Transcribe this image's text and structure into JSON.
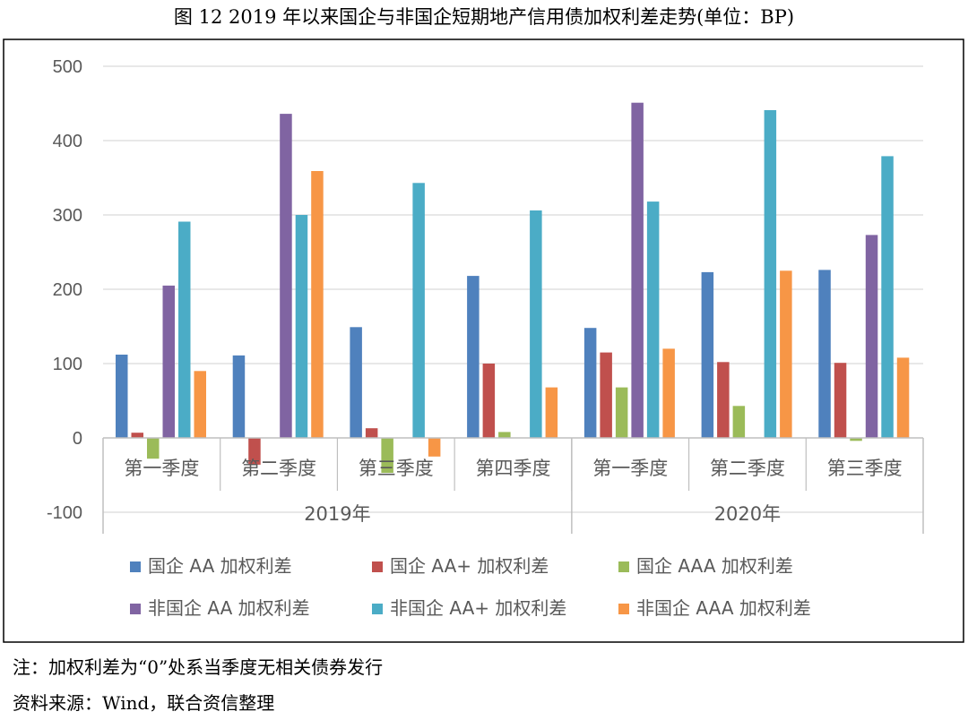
{
  "chart_data": {
    "type": "bar",
    "title": "图 12   2019 年以来国企与非国企短期地产信用债加权利差走势(单位：BP)",
    "xlabel": "",
    "ylabel": "",
    "ylim": [
      -100,
      500
    ],
    "yticks": [
      500,
      400,
      300,
      200,
      100,
      0,
      -100
    ],
    "grid": true,
    "legend_position": "bottom",
    "categories": [
      "第一季度",
      "第二季度",
      "第三季度",
      "第四季度",
      "第一季度",
      "第二季度",
      "第三季度"
    ],
    "groups": [
      {
        "label": "2019年",
        "span": [
          0,
          3
        ]
      },
      {
        "label": "2020年",
        "span": [
          4,
          6
        ]
      }
    ],
    "series": [
      {
        "name": "国企 AA 加权利差",
        "color": "#4F81BD",
        "values": [
          112,
          111,
          149,
          218,
          148,
          223,
          226
        ]
      },
      {
        "name": "国企 AA+ 加权利差",
        "color": "#C0504D",
        "values": [
          7,
          -36,
          13,
          100,
          115,
          102,
          101
        ]
      },
      {
        "name": "国企 AAA 加权利差",
        "color": "#9BBB59",
        "values": [
          -28,
          0,
          -47,
          8,
          68,
          43,
          -4
        ]
      },
      {
        "name": "非国企 AA 加权利差",
        "color": "#8064A2",
        "values": [
          205,
          436,
          0,
          0,
          451,
          0,
          273
        ]
      },
      {
        "name": "非国企 AA+ 加权利差",
        "color": "#4BACC6",
        "values": [
          291,
          300,
          343,
          306,
          318,
          441,
          379
        ]
      },
      {
        "name": "非国企 AAA 加权利差",
        "color": "#F79646",
        "values": [
          90,
          359,
          -25,
          68,
          120,
          225,
          108
        ]
      }
    ]
  },
  "notes": {
    "note": "注：加权利差为“0”处系当季度无相关债券发行",
    "source": "资料来源：Wind，联合资信整理"
  }
}
